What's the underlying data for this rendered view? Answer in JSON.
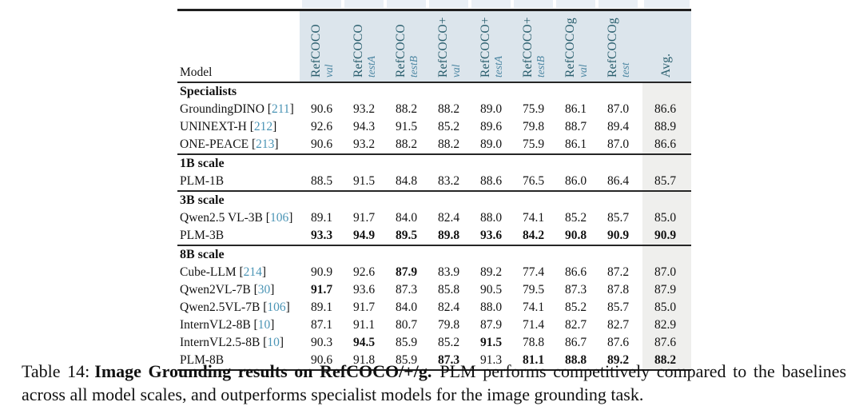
{
  "colors": {
    "header_band": "#dce5ec",
    "avg_band": "#efefed",
    "header_text": "#2b5f6e",
    "header_sub_text": "#4d87a3",
    "citation": "#4a94b5",
    "rule": "#1f1f1f"
  },
  "table": {
    "model_col_header": "Model",
    "columns": [
      {
        "name": "RefCOCO",
        "split": "val"
      },
      {
        "name": "RefCOCO",
        "split": "testA"
      },
      {
        "name": "RefCOCO",
        "split": "testB"
      },
      {
        "name": "RefCOCO+",
        "split": "val"
      },
      {
        "name": "RefCOCO+",
        "split": "testA"
      },
      {
        "name": "RefCOCO+",
        "split": "testB"
      },
      {
        "name": "RefCOCOg",
        "split": "val"
      },
      {
        "name": "RefCOCOg",
        "split": "test"
      },
      {
        "name": "Avg.",
        "split": ""
      }
    ],
    "sections": [
      {
        "title": "Specialists",
        "rows": [
          {
            "model": "GroundingDINO",
            "cite": "211",
            "values": [
              "90.6",
              "93.2",
              "88.2",
              "88.2",
              "89.0",
              "75.9",
              "86.1",
              "87.0",
              "86.6"
            ],
            "bold": []
          },
          {
            "model": "UNINEXT-H",
            "cite": "212",
            "values": [
              "92.6",
              "94.3",
              "91.5",
              "85.2",
              "89.6",
              "79.8",
              "88.7",
              "89.4",
              "88.9"
            ],
            "bold": []
          },
          {
            "model": "ONE-PEACE",
            "cite": "213",
            "values": [
              "90.6",
              "93.2",
              "88.2",
              "88.2",
              "89.0",
              "75.9",
              "86.1",
              "87.0",
              "86.6"
            ],
            "bold": []
          }
        ]
      },
      {
        "title": "1B scale",
        "rows": [
          {
            "model": "PLM-1B",
            "cite": "",
            "values": [
              "88.5",
              "91.5",
              "84.8",
              "83.2",
              "88.6",
              "76.5",
              "86.0",
              "86.4",
              "85.7"
            ],
            "bold": []
          }
        ]
      },
      {
        "title": "3B scale",
        "rows": [
          {
            "model": "Qwen2.5 VL-3B",
            "cite": "106",
            "values": [
              "89.1",
              "91.7",
              "84.0",
              "82.4",
              "88.0",
              "74.1",
              "85.2",
              "85.7",
              "85.0"
            ],
            "bold": []
          },
          {
            "model": "PLM-3B",
            "cite": "",
            "values": [
              "93.3",
              "94.9",
              "89.5",
              "89.8",
              "93.6",
              "84.2",
              "90.8",
              "90.9",
              "90.9"
            ],
            "bold": [
              0,
              1,
              2,
              3,
              4,
              5,
              6,
              7,
              8
            ]
          }
        ]
      },
      {
        "title": "8B scale",
        "rows": [
          {
            "model": "Cube-LLM",
            "cite": "214",
            "values": [
              "90.9",
              "92.6",
              "87.9",
              "83.9",
              "89.2",
              "77.4",
              "86.6",
              "87.2",
              "87.0"
            ],
            "bold": [
              2
            ]
          },
          {
            "model": "Qwen2VL-7B",
            "cite": "30",
            "values": [
              "91.7",
              "93.6",
              "87.3",
              "85.8",
              "90.5",
              "79.5",
              "87.3",
              "87.8",
              "87.9"
            ],
            "bold": [
              0
            ]
          },
          {
            "model": "Qwen2.5VL-7B",
            "cite": "106",
            "values": [
              "89.1",
              "91.7",
              "84.0",
              "82.4",
              "88.0",
              "74.1",
              "85.2",
              "85.7",
              "85.0"
            ],
            "bold": []
          },
          {
            "model": "InternVL2-8B",
            "cite": "10",
            "values": [
              "87.1",
              "91.1",
              "80.7",
              "79.8",
              "87.9",
              "71.4",
              "82.7",
              "82.7",
              "82.9"
            ],
            "bold": []
          },
          {
            "model": "InternVL2.5-8B",
            "cite": "10",
            "values": [
              "90.3",
              "94.5",
              "85.9",
              "85.2",
              "91.5",
              "78.8",
              "86.7",
              "87.6",
              "87.6"
            ],
            "bold": [
              1,
              4
            ]
          },
          {
            "model": "PLM-8B",
            "cite": "",
            "values": [
              "90.6",
              "91.8",
              "85.9",
              "87.3",
              "91.3",
              "81.1",
              "88.8",
              "89.2",
              "88.2"
            ],
            "bold": [
              3,
              5,
              6,
              7,
              8
            ]
          }
        ]
      }
    ]
  },
  "caption": {
    "prefix": "Table 14:",
    "bold_title": "Image Grounding results on RefCOCO/+/g.",
    "rest": "PLM performs competitively compared to the baselines across all model scales, and outperforms specialist models for the image grounding task."
  }
}
